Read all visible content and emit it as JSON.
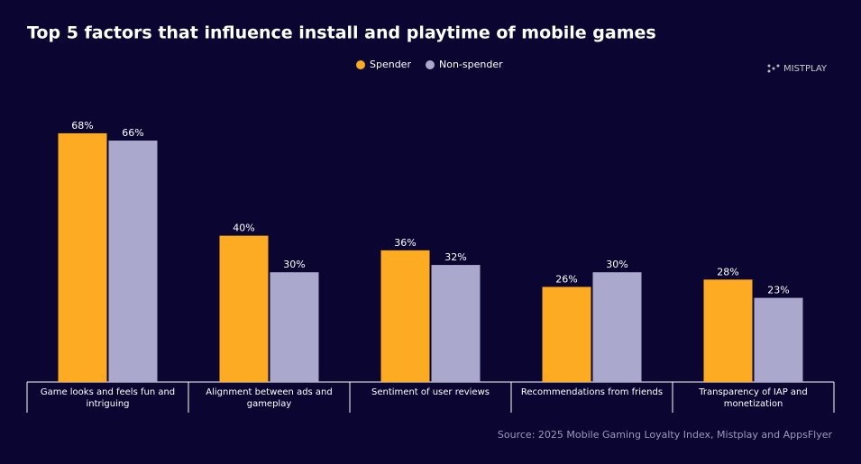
{
  "chart_data": {
    "type": "bar",
    "title": "Top 5 factors that influence install and playtime of mobile games",
    "logo": "MISTPLAY",
    "source": "Source: 2025 Mobile Gaming Loyalty Index, Mistplay and AppsFlyer",
    "categories": [
      "Game looks and feels fun and intriguing",
      "Alignment between ads and gameplay",
      "Sentiment of user reviews",
      "Recommendations from friends",
      "Transparency of IAP and monetization"
    ],
    "series": [
      {
        "name": "Spender",
        "color": "#fdab22",
        "values": [
          68,
          40,
          36,
          26,
          28
        ],
        "value_labels": [
          "68%",
          "40%",
          "36%",
          "26%",
          "28%"
        ]
      },
      {
        "name": "Non-spender",
        "color": "#aaa9cd",
        "values": [
          66,
          30,
          32,
          30,
          23
        ],
        "value_labels": [
          "66%",
          "30%",
          "32%",
          "30%",
          "23%"
        ]
      }
    ],
    "ylim": [
      0,
      100
    ],
    "legend": "top"
  }
}
